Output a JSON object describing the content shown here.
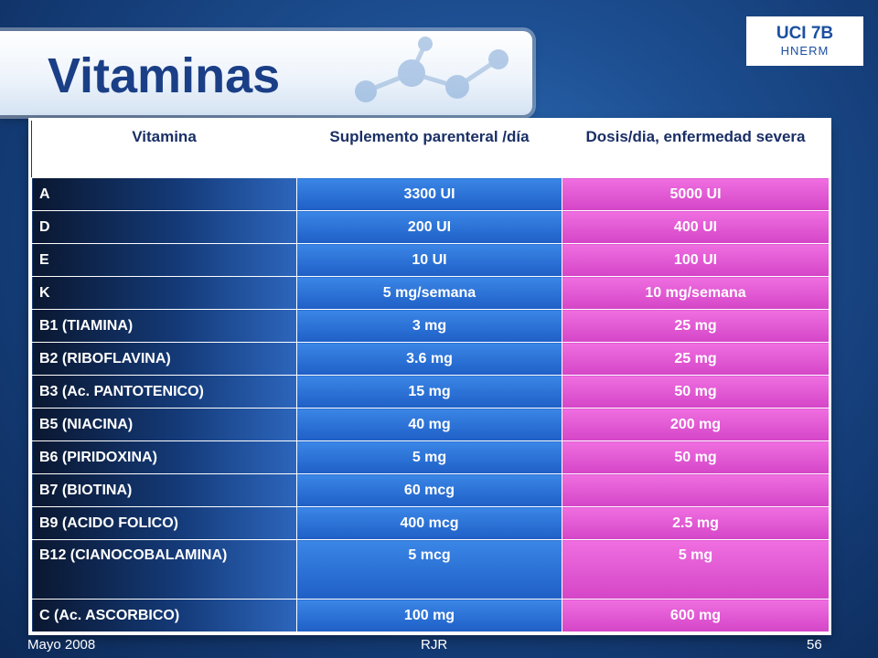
{
  "title": "Vitaminas",
  "badge": {
    "line1": "UCI 7B",
    "line2": "HNERM"
  },
  "table": {
    "headers": [
      "Vitamina",
      "Suplemento parenteral /día",
      "Dosis/dia, enfermedad severa"
    ],
    "rows": [
      [
        "A",
        "3300 UI",
        "5000 UI"
      ],
      [
        "D",
        "200 UI",
        "400 UI"
      ],
      [
        "E",
        "10 UI",
        "100 UI"
      ],
      [
        "K",
        "5 mg/semana",
        "10 mg/semana"
      ],
      [
        "B1 (TIAMINA)",
        "3 mg",
        "25 mg"
      ],
      [
        "B2 (RIBOFLAVINA)",
        "3.6 mg",
        "25 mg"
      ],
      [
        "B3 (Ac. PANTOTENICO)",
        "15 mg",
        "50 mg"
      ],
      [
        "B5 (NIACINA)",
        "40 mg",
        "200 mg"
      ],
      [
        "B6 (PIRIDOXINA)",
        "5 mg",
        "50 mg"
      ],
      [
        "B7 (BIOTINA)",
        "60 mcg",
        ""
      ],
      [
        "B9 (ACIDO FOLICO)",
        "400 mcg",
        "2.5 mg"
      ],
      [
        "B12 (CIANOCOBALAMINA)",
        "5 mcg",
        "5 mg"
      ],
      [
        "C (Ac. ASCORBICO)",
        "100 mg",
        "600 mg"
      ]
    ]
  },
  "footer": {
    "left": "Mayo 2008",
    "center": "RJR",
    "right": "56"
  }
}
